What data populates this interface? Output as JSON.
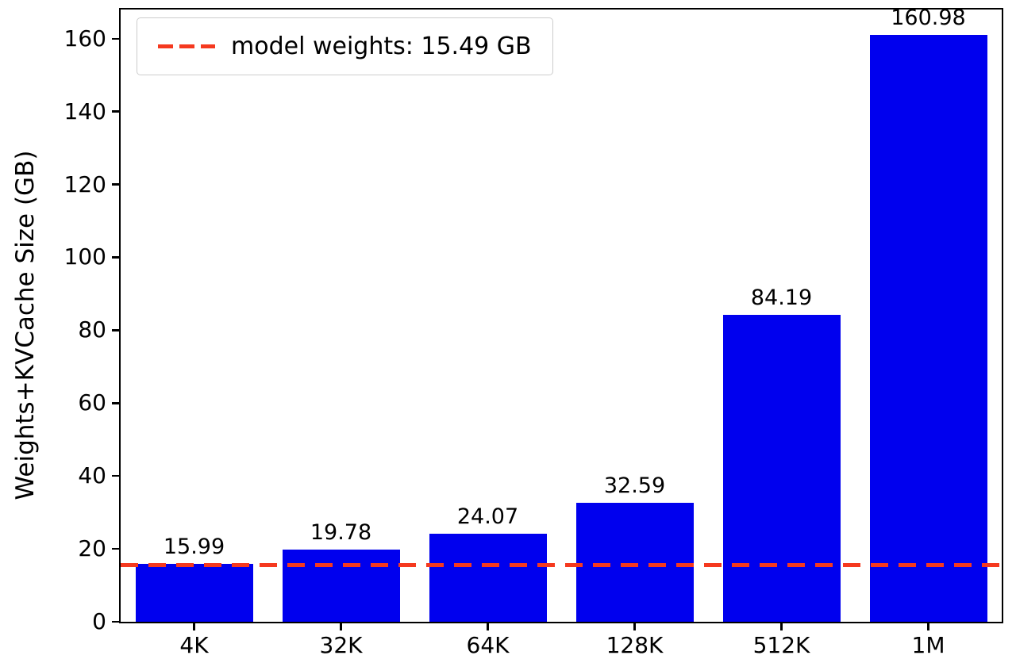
{
  "chart_data": {
    "type": "bar",
    "title": "",
    "xlabel": "",
    "ylabel": "Weights+KVCache Size (GB)",
    "categories": [
      "4K",
      "32K",
      "64K",
      "128K",
      "512K",
      "1M"
    ],
    "values": [
      15.99,
      19.78,
      24.07,
      32.59,
      84.19,
      160.98
    ],
    "value_labels": [
      "15.99",
      "19.78",
      "24.07",
      "32.59",
      "84.19",
      "160.98"
    ],
    "ylim": [
      0,
      168
    ],
    "yticks": [
      0,
      20,
      40,
      60,
      80,
      100,
      120,
      140,
      160
    ],
    "ytick_labels": [
      "0",
      "20",
      "40",
      "60",
      "80",
      "100",
      "120",
      "140",
      "160"
    ],
    "grid": false,
    "bar_color": "#0000ee",
    "reference_line": {
      "value": 15.49,
      "style": "dashed",
      "color": "#f5391f",
      "label": "model weights: 15.49 GB"
    },
    "legend": {
      "position": "upper-left",
      "entries": [
        "model weights: 15.49 GB"
      ]
    }
  }
}
